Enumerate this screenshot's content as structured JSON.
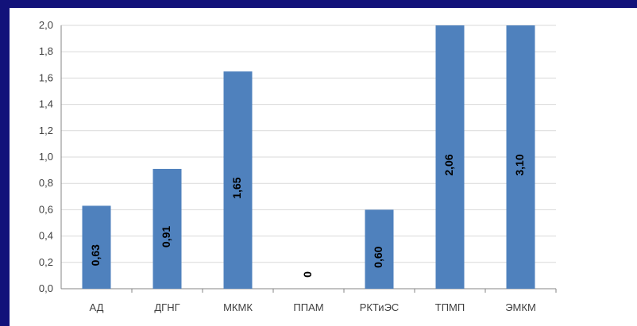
{
  "chart_data": {
    "type": "bar",
    "categories": [
      "АД",
      "ДГНГ",
      "МКМК",
      "ППАМ",
      "РКТиЭС",
      "ТПМП",
      "ЭМКМ"
    ],
    "values": [
      0.63,
      0.91,
      1.65,
      0,
      0.6,
      2.06,
      3.1
    ],
    "value_labels": [
      "0,63",
      "0,91",
      "1,65",
      "0",
      "0,60",
      "2,06",
      "3,10"
    ],
    "y_ticks": [
      "0,0",
      "0,2",
      "0,4",
      "0,6",
      "0,8",
      "1,0",
      "1,2",
      "1,4",
      "1,6",
      "1,8",
      "2,0"
    ],
    "ylim": [
      0,
      2.0
    ],
    "grid": true,
    "legend": "none",
    "colors": {
      "bar": "#4f81bd",
      "grid": "#d9d9d9",
      "axis": "#868686",
      "text": "#404040",
      "label": "#000000",
      "frame": "#12127a"
    }
  }
}
